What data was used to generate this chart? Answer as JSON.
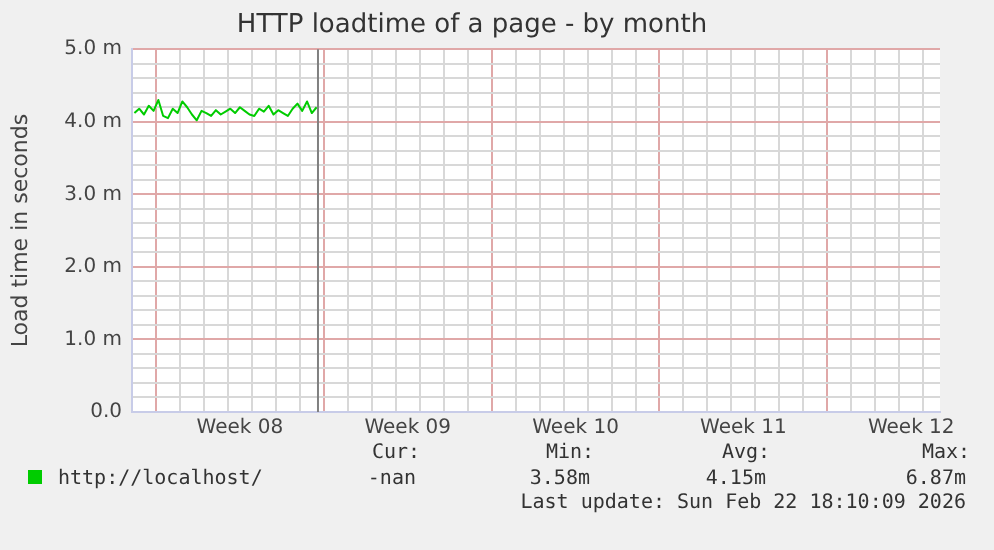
{
  "chart_data": {
    "type": "line",
    "title": "HTTP loadtime of a page - by month",
    "ylabel": "Load time in seconds",
    "x": [
      "2026-02-15T02:24",
      "2026-02-15T07:12",
      "2026-02-15T12:00",
      "2026-02-15T16:48",
      "2026-02-15T21:36",
      "2026-02-16T02:24",
      "2026-02-16T07:12",
      "2026-02-16T12:00",
      "2026-02-16T16:48",
      "2026-02-16T21:36",
      "2026-02-17T02:24",
      "2026-02-17T07:12",
      "2026-02-17T12:00",
      "2026-02-17T16:48",
      "2026-02-17T21:36",
      "2026-02-18T02:24",
      "2026-02-18T07:12",
      "2026-02-18T12:00",
      "2026-02-18T16:48",
      "2026-02-18T21:36",
      "2026-02-19T02:24",
      "2026-02-19T07:12",
      "2026-02-19T12:00",
      "2026-02-19T16:48",
      "2026-02-19T21:36",
      "2026-02-20T02:24",
      "2026-02-20T07:12",
      "2026-02-20T12:00",
      "2026-02-20T16:48",
      "2026-02-20T21:36",
      "2026-02-21T02:24",
      "2026-02-21T07:12",
      "2026-02-21T12:00",
      "2026-02-21T16:48",
      "2026-02-21T21:36",
      "2026-02-22T02:24",
      "2026-02-22T07:12",
      "2026-02-22T12:00",
      "2026-02-22T16:48"
    ],
    "series": [
      {
        "name": "http://localhost/",
        "color": "#00cc00",
        "values": [
          4.12,
          4.18,
          4.1,
          4.22,
          4.15,
          4.3,
          4.08,
          4.05,
          4.18,
          4.12,
          4.28,
          4.2,
          4.1,
          4.02,
          4.15,
          4.12,
          4.08,
          4.16,
          4.1,
          4.14,
          4.18,
          4.12,
          4.2,
          4.15,
          4.1,
          4.08,
          4.18,
          4.14,
          4.22,
          4.1,
          4.16,
          4.12,
          4.08,
          4.18,
          4.25,
          4.15,
          4.28,
          4.12,
          4.2
        ]
      }
    ],
    "xlim": [
      "2026-02-15T00:00",
      "2026-03-20T16:48"
    ],
    "xticks": [
      {
        "value": "2026-02-15T00:00",
        "label": null
      },
      {
        "value": "2026-02-16T00:00",
        "label": null
      },
      {
        "value": "2026-02-17T00:00",
        "label": null
      },
      {
        "value": "2026-02-18T00:00",
        "label": null
      },
      {
        "value": "2026-02-19T00:00",
        "label": null
      },
      {
        "value": "2026-02-19T12:00",
        "label": "Week 08"
      },
      {
        "value": "2026-02-20T00:00",
        "label": null
      },
      {
        "value": "2026-02-21T00:00",
        "label": null
      },
      {
        "value": "2026-02-22T00:00",
        "label": null
      },
      {
        "value": "2026-02-23T00:00",
        "label": null
      },
      {
        "value": "2026-02-24T00:00",
        "label": null
      },
      {
        "value": "2026-02-25T00:00",
        "label": null
      },
      {
        "value": "2026-02-26T00:00",
        "label": null
      },
      {
        "value": "2026-02-26T12:00",
        "label": "Week 09"
      },
      {
        "value": "2026-02-27T00:00",
        "label": null
      },
      {
        "value": "2026-02-28T00:00",
        "label": null
      },
      {
        "value": "2026-03-01T00:00",
        "label": null
      },
      {
        "value": "2026-03-02T00:00",
        "label": null
      },
      {
        "value": "2026-03-03T00:00",
        "label": null
      },
      {
        "value": "2026-03-04T00:00",
        "label": null
      },
      {
        "value": "2026-03-05T00:00",
        "label": null
      },
      {
        "value": "2026-03-05T12:00",
        "label": "Week 10"
      },
      {
        "value": "2026-03-06T00:00",
        "label": null
      },
      {
        "value": "2026-03-07T00:00",
        "label": null
      },
      {
        "value": "2026-03-08T00:00",
        "label": null
      },
      {
        "value": "2026-03-09T00:00",
        "label": null
      },
      {
        "value": "2026-03-10T00:00",
        "label": null
      },
      {
        "value": "2026-03-11T00:00",
        "label": null
      },
      {
        "value": "2026-03-12T00:00",
        "label": null
      },
      {
        "value": "2026-03-12T12:00",
        "label": "Week 11"
      },
      {
        "value": "2026-03-13T00:00",
        "label": null
      },
      {
        "value": "2026-03-14T00:00",
        "label": null
      },
      {
        "value": "2026-03-15T00:00",
        "label": null
      },
      {
        "value": "2026-03-16T00:00",
        "label": null
      },
      {
        "value": "2026-03-17T00:00",
        "label": null
      },
      {
        "value": "2026-03-18T00:00",
        "label": null
      },
      {
        "value": "2026-03-19T00:00",
        "label": null
      },
      {
        "value": "2026-03-19T12:00",
        "label": "Week 12"
      },
      {
        "value": "2026-03-20T00:00",
        "label": null
      }
    ],
    "ylim": [
      0,
      5
    ],
    "yticks": [
      {
        "value": 0,
        "label": "0.0"
      },
      {
        "value": 0.2,
        "label": null
      },
      {
        "value": 0.4,
        "label": null
      },
      {
        "value": 0.6,
        "label": null
      },
      {
        "value": 0.8,
        "label": null
      },
      {
        "value": 1,
        "label": "1.0 m"
      },
      {
        "value": 1.2,
        "label": null
      },
      {
        "value": 1.4,
        "label": null
      },
      {
        "value": 1.6,
        "label": null
      },
      {
        "value": 1.8,
        "label": null
      },
      {
        "value": 2,
        "label": "2.0 m"
      },
      {
        "value": 2.2,
        "label": null
      },
      {
        "value": 2.4,
        "label": null
      },
      {
        "value": 2.6,
        "label": null
      },
      {
        "value": 2.8,
        "label": null
      },
      {
        "value": 3,
        "label": "3.0 m"
      },
      {
        "value": 3.2,
        "label": null
      },
      {
        "value": 3.4,
        "label": null
      },
      {
        "value": 3.6,
        "label": null
      },
      {
        "value": 3.8,
        "label": null
      },
      {
        "value": 4,
        "label": "4.0 m"
      },
      {
        "value": 4.2,
        "label": null
      },
      {
        "value": 4.4,
        "label": null
      },
      {
        "value": 4.6,
        "label": null
      },
      {
        "value": 4.8,
        "label": null
      },
      {
        "value": 5,
        "label": "5.0 m"
      }
    ],
    "ref_lines": [
      {
        "axis": "x",
        "value": "2026-02-22T18:10",
        "label": null,
        "color": "#808080"
      }
    ],
    "grid": true,
    "legend": "bottom left",
    "marker": "none",
    "line_style": "solid",
    "annotations": [
      "Cur:",
      "Min:",
      "Avg:",
      "Max:",
      "-nan",
      "3.58m",
      "4.15m",
      "6.87m",
      "Last update: Sun Feb 22 18:10:09 2026"
    ]
  }
}
